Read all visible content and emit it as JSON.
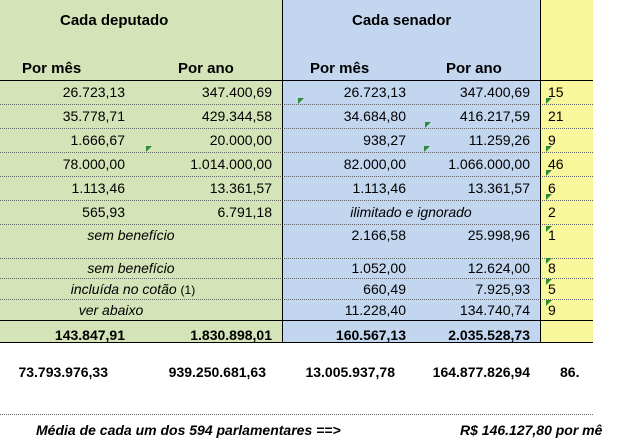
{
  "headers": {
    "deputado": "Cada deputado",
    "senador": "Cada senador",
    "por_mes": "Por mês",
    "por_ano": "Por ano"
  },
  "rows": [
    {
      "dm": "26.723,13",
      "da": "347.400,69",
      "sm": "26.723,13",
      "sa": "347.400,69",
      "t": "15"
    },
    {
      "dm": "35.778,71",
      "da": "429.344,58",
      "sm": "34.684,80",
      "sa": "416.217,59",
      "t": "21"
    },
    {
      "dm": "1.666,67",
      "da": "20.000,00",
      "sm": "938,27",
      "sa": "11.259,26",
      "t": "9"
    },
    {
      "dm": "78.000,00",
      "da": "1.014.000,00",
      "sm": "82.000,00",
      "sa": "1.066.000,00",
      "t": "46"
    },
    {
      "dm": "1.113,46",
      "da": "13.361,57",
      "sm": "1.113,46",
      "sa": "13.361,57",
      "t": "6"
    },
    {
      "dm": "565,93",
      "da": "6.791,18",
      "sen_span": "ilimitado e ignorado",
      "t": "2"
    },
    {
      "dep_span": "sem benefício",
      "sm": "2.166,58",
      "sa": "25.998,96",
      "t": "1"
    },
    {
      "dep_span": "sem benefício",
      "sm": "1.052,00",
      "sa": "12.624,00",
      "t": "8"
    },
    {
      "dep_span": "incluída no cotão",
      "dep_note": "(1)",
      "sm": "660,49",
      "sa": "7.925,93",
      "t": "5"
    },
    {
      "dep_span": "ver abaixo",
      "sm": "11.228,40",
      "sa": "134.740,74",
      "t": "9"
    }
  ],
  "totals": {
    "dm": "143.847,91",
    "da": "1.830.898,01",
    "sm": "160.567,13",
    "sa": "2.035.528,73"
  },
  "grand": {
    "dm": "73.793.976,33",
    "da": "939.250.681,63",
    "sm": "13.005.937,78",
    "sa": "164.877.826,94",
    "t": "86."
  },
  "footer": {
    "left": "Média de cada um dos 594 parlamentares ==>",
    "right": "R$ 146.127,80 por mê"
  }
}
